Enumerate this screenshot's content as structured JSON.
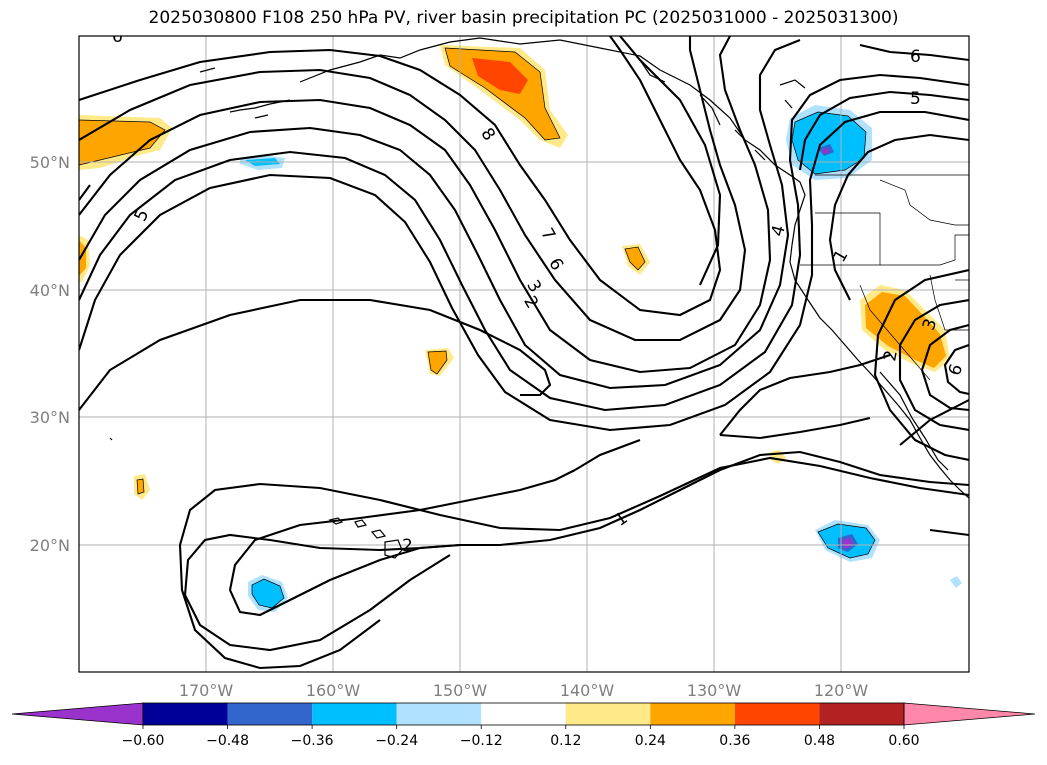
{
  "title": "2025030800 F108 250 hPa PV, river basin precipitation PC (2025031000 - 2025031300)",
  "lat_labels": [
    "50°N",
    "40°N",
    "30°N",
    "20°N"
  ],
  "lon_labels": [
    "170°W",
    "160°W",
    "150°W",
    "140°W",
    "130°W",
    "120°W"
  ],
  "contour_labels": [
    "6",
    "5",
    "8",
    "7",
    "6",
    "3",
    "2",
    "4",
    "1",
    "6",
    "5",
    "2",
    "3",
    "6",
    "2",
    "1"
  ],
  "colorbar": {
    "colors": [
      "#9933cc",
      "#000099",
      "#3366cc",
      "#00bfff",
      "#b0e2ff",
      "#ffffff",
      "#ffe989",
      "#ffa500",
      "#ff4500",
      "#b22222",
      "#ff88aa"
    ],
    "tick_labels": [
      "−0.60",
      "−0.48",
      "−0.36",
      "−0.24",
      "−0.12",
      "0.12",
      "0.24",
      "0.36",
      "0.48",
      "0.60"
    ]
  }
}
